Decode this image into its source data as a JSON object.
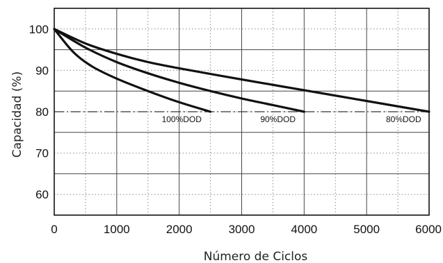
{
  "chart_data": {
    "type": "line",
    "xlabel": "Número de Ciclos",
    "ylabel": "Capacidad (%)",
    "xlim": [
      0,
      6000
    ],
    "ylim": [
      55,
      105
    ],
    "x_ticks": [
      "0",
      "1000",
      "2000",
      "3000",
      "4000",
      "5000",
      "6000"
    ],
    "y_ticks": [
      "100",
      "90",
      "80",
      "70",
      "60"
    ],
    "grid": true,
    "reference_line": {
      "y": 80,
      "style": "dash-dot"
    },
    "series": [
      {
        "name": "100%DOD",
        "x": [
          0,
          300,
          600,
          1000,
          1500,
          2000,
          2500
        ],
        "y": [
          100,
          94.5,
          91,
          88,
          85,
          82.3,
          80
        ]
      },
      {
        "name": "90%DOD",
        "x": [
          0,
          500,
          1000,
          1500,
          2000,
          2500,
          3000,
          3500,
          4000
        ],
        "y": [
          100,
          95.5,
          92,
          89.3,
          87,
          85,
          83.2,
          81.6,
          80
        ]
      },
      {
        "name": "80%DOD",
        "x": [
          0,
          500,
          1000,
          1500,
          2000,
          3000,
          4000,
          5000,
          6000
        ],
        "y": [
          100,
          96.5,
          94,
          92,
          90.5,
          87.8,
          85.2,
          82.6,
          80
        ]
      }
    ]
  }
}
